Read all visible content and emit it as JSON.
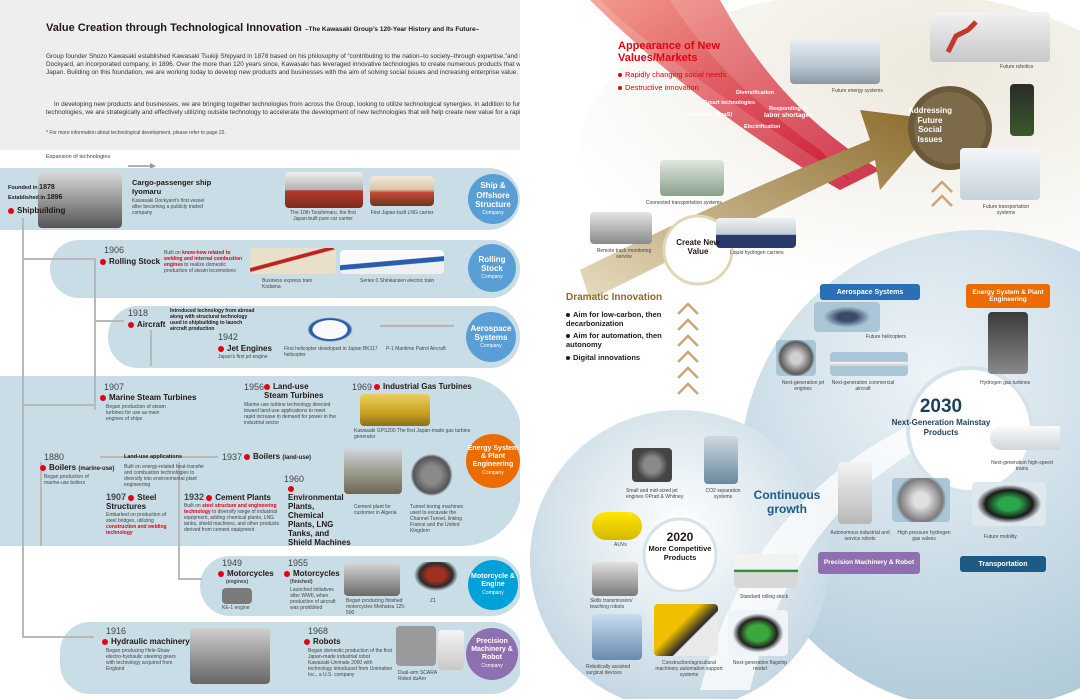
{
  "header": {
    "title": "Value Creation through Technological Innovation",
    "subtitle": "–The Kawasaki Group’s 120-Year History and Its Future–",
    "p1": "Group founder Shozo Kawasaki established Kawasaki Tsukiji Shipyard in 1878 based on his philosophy of “contributing to the nation–to society–through expertise,”and later established Kawasaki Dockyard, an incorporated company, in 1896. Over the more than 120 years since, Kawasaki has leveraged innovative technologies to create numerous products that were the first of their kind in Japan. Building on this foundation, we are working today to develop new products and businesses with the aim of solving social issues and increasing enterprise value.",
    "p2": "In developing new products and businesses, we are bringing together technologies from across the Group, looking to utilize technological synergies. In addition to further strengthening existing technologies, we are strategically and effectively utilizing outside technology to accelerate the development of new technologies that will help create new value for a rapidly changing society.",
    "note": "* For more information about technological development, please refer to page 22."
  },
  "expansion_label": "Expansion of technologies",
  "history": {
    "founded_label": "Founded in",
    "founded_year": "1878",
    "established_label": "Established in",
    "established_year": "1896",
    "shipbuilding": "Shipbuilding",
    "ship_title": "Cargo-passenger ship Iyomaru",
    "ship_desc": "Kawasaki Dockyard’s first vessel after becoming a publicly traded company",
    "ship_cap1": "The 10th Tsoshimaru, the first Japan-built pure car carrier",
    "ship_cap2": "First Japan-built LNG carrier",
    "y1906": "1906",
    "rolling": "Rolling Stock",
    "rolling_desc_a": "Built on",
    "rolling_desc_b": "know-how related to welding and internal combustion engines",
    "rolling_desc_c": "to realize domestic production of steam locomotives",
    "rolling_cap1": "Business express train Kodama",
    "rolling_cap2": "Series 0 Shinkansen electric train",
    "y1918": "1918",
    "aircraft": "Aircraft",
    "aircraft_desc": "Introduced technology from abroad along with structural technology used in shipbuilding to launch aircraft production",
    "y1942": "1942",
    "jet": "Jet Engines",
    "jet_desc": "Japan's first jet engine",
    "heli_cap": "First helicopter developed in Japan BK117 helicopter",
    "p1_cap": "P-1 Maritime Patrol Aircraft",
    "y1907a": "1907",
    "marine": "Marine Steam Turbines",
    "marine_desc": "Began production of steam turbines for use as main engines of ships",
    "y1956": "1956",
    "landuse": "Land-use Steam Turbines",
    "landuse_desc": "Marine-use turbine technology directed toward land-use applications to meet rapid increase in demand for power in the industrial sector",
    "y1969": "1969",
    "gas": "Industrial Gas Turbines",
    "gas_cap": "Kawasaki GPS200 The first Japan-made gas turbine generator",
    "y1880": "1880",
    "boilers": "Boilers",
    "boilers_sub": "(marine-use)",
    "boilers_desc": "Began production of marine-use boilers",
    "landapp": "Land-use applications",
    "landapp_desc": "Built on energy-related heat-transfer and combustion technologies to diversify into environmental plant engineering",
    "y1937": "1937",
    "boilers_land": "Boilers",
    "boilers_land_sub": "(land-use)",
    "y1960": "1960",
    "env": "Environmental Plants, Chemical Plants, LNG Tanks, and Shield Machines",
    "cement_cap": "Cement plant for customer in Algeria",
    "tbm_cap": "Tunnel boring machines used to excavate the Channel Tunnel, linking France and the United Kingdom",
    "y1907b": "1907",
    "steel": "Steel Structures",
    "steel_desc_a": "Embarked on production of steel bridges, utilizing",
    "steel_desc_b": "construction and welding technology",
    "y1932": "1932",
    "cement": "Cement Plants",
    "cement_desc_a": "Built on",
    "cement_desc_b": "steel structure and engineering technology",
    "cement_desc_c": "to diversify range of industrial equipment, adding chemical plants, LNG tanks, shield machines, and other products derived from cement equipment",
    "y1949": "1949",
    "moto_e": "Motorcycles",
    "moto_e_sub": "(engines)",
    "ke1": "KE-1 engine",
    "y1955": "1955",
    "moto_f": "Motorcycles",
    "moto_f_sub": "(finished)",
    "moto_f_desc": "Launched initiatives after WWII, when production of aircraft was prohibited",
    "meihatsu_cap": "Began producing finished motorcycles Meihatsu 125-500",
    "z1": "Z1",
    "y1916": "1916",
    "hydraulic": "Hydraulic machinery",
    "hydraulic_desc": "Began producing Hele-Shaw electro-hydraulic steering gears with technology acquired from England",
    "y1968": "1968",
    "robots": "Robots",
    "robots_desc": "Began domestic production of the first Japan-made industrial robot Kawasaki-Unimate 2000 with technology introduced from Unimation Inc., a U.S. company",
    "duaro_cap": "Dual-arm SCARA Robot duAro"
  },
  "categories": {
    "ship": "Ship & Offshore Structure",
    "rolling": "Rolling Stock",
    "aero": "Aerospace Systems",
    "energy": "Energy System & Plant Engineering",
    "moto": "Motorcycle & Engine",
    "precision": "Precision Machinery & Robot",
    "company": "Company"
  },
  "future": {
    "appearance": "Appearance of New Values/Markets",
    "bullet1": "Rapidly changing social needs",
    "bullet2": "Destructive innovation",
    "diversification": "Diversification",
    "smart": "Smart technologies",
    "maas": "Services (MaaS)",
    "labor_a": "Responding to",
    "labor_b": "labor shortages",
    "electrification": "Electrification",
    "energy_systems": "Future energy systems",
    "robotics": "Future robotics",
    "transport_systems": "Future transportation systems",
    "addressing": "Addressing Future Social Issues",
    "connected": "Connected transportation systems",
    "remote": "Remote track monitoring service",
    "liquid_h2": "Liquid hydrogen carriers",
    "create": "Create New Value",
    "dramatic": "Dramatic Innovation",
    "d1": "Aim for low-carbon, then decarbonization",
    "d2": "Aim for automation, then autonomy",
    "d3": "Digital innovations",
    "continuous": "Continuous growth",
    "y2020": "2020",
    "more": "More Competitive Products",
    "jet_engines": "Small and mid-sized jet engines ©Pratt & Whitney",
    "co2": "CO2 separation systems",
    "auvs": "AUVs",
    "skills": "Skills transmission/ teaching robots",
    "rolling_std": "Standard rolling stock",
    "surgical": "Robotically assisted surgical devices",
    "construction": "Construction/agricultural machinery automation support systems",
    "flagship": "Next-generation flagship model",
    "y2030": "2030",
    "nextgen": "Next-Generation Mainstay Products",
    "aero_pill": "Aerospace Systems",
    "energy_pill": "Energy System & Plant Engineering",
    "precision_pill": "Precision Machinery & Robot",
    "transport_pill": "Transportation",
    "future_heli": "Future helicopters",
    "ng_jet": "Next-generation jet engines",
    "ng_aircraft": "Next-generation commercial aircraft",
    "h2_turbines": "Hydrogen gas turbines",
    "hs_trains": "Next-generation high-speed trains",
    "auto_robots": "Autonomous industrial and service robots",
    "h2_valves": "High pressure hydrogen gas valves",
    "mobility": "Future mobility"
  },
  "colors": {
    "ship": "#5a9ed6",
    "rolling": "#5a9ed6",
    "aero": "#5a9ed6",
    "energy": "#ec6c00",
    "moto": "#00a0d9",
    "precision": "#8e6fb0",
    "accent": "#e60012",
    "band": "#c9dde7"
  }
}
